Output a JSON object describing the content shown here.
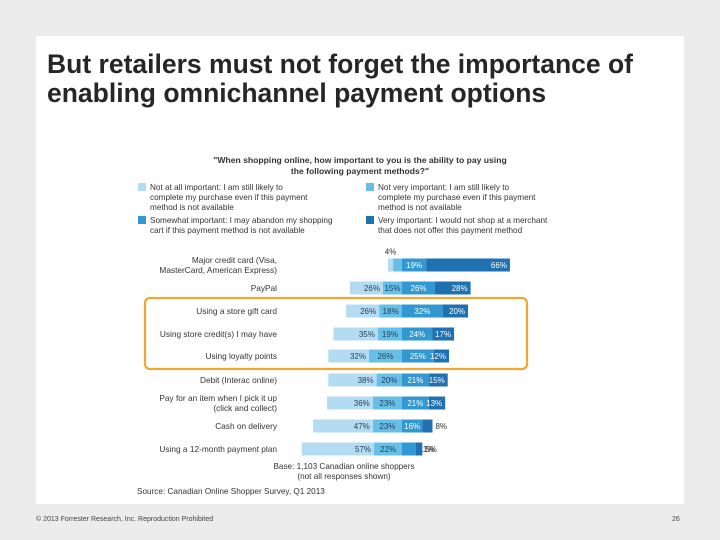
{
  "slide": {
    "title": "But retailers must not forget the importance of enabling omnichannel payment options",
    "footer_left": "© 2013 Forrester Research, Inc. Reproduction Prohibited",
    "page_number": "26",
    "highlight_color": "#f0a830"
  },
  "chart_data": {
    "type": "bar",
    "stacked": true,
    "orientation": "horizontal",
    "title": "\"When shopping online, how important to you is the ability to pay using the following payment methods?\"",
    "categories": [
      "Major credit card (Visa, MasterCard, American Express)",
      "PayPal",
      "Using a store gift card",
      "Using store credit(s) I may have",
      "Using loyalty points",
      "Debit (Interac online)",
      "Pay for an item when I pick it up (click and collect)",
      "Cash on delivery",
      "Using a 12-month payment plan"
    ],
    "series": [
      {
        "name": "Not at all important: I am still likely to complete my purchase even if this payment method is not available",
        "color": "#b3dcf3",
        "values": [
          4,
          26,
          26,
          35,
          32,
          38,
          36,
          47,
          57
        ]
      },
      {
        "name": "Not very important: I am still likely to complete my purchase even if this payment method is not available",
        "color": "#67bfe8",
        "values": [
          7,
          15,
          18,
          19,
          26,
          20,
          23,
          23,
          22
        ]
      },
      {
        "name": "Somewhat important: I may abandon my shopping cart if this payment method is not available",
        "color": "#3198d2",
        "values": [
          19,
          26,
          32,
          24,
          25,
          21,
          21,
          16,
          11
        ]
      },
      {
        "name": "Very important: I would not shop at a merchant that does not offer this payment method",
        "color": "#1f71b1",
        "values": [
          66,
          28,
          20,
          17,
          12,
          15,
          13,
          8,
          5
        ]
      }
    ],
    "highlighted_categories": [
      "Using a store gift card",
      "Using store credit(s) I may have",
      "Using loyalty points"
    ],
    "base_note": "Base: 1,103 Canadian online shoppers (not all responses shown)",
    "source": "Source: Canadian Online Shopper Survey, Q1 2013",
    "legend_position": "top"
  }
}
